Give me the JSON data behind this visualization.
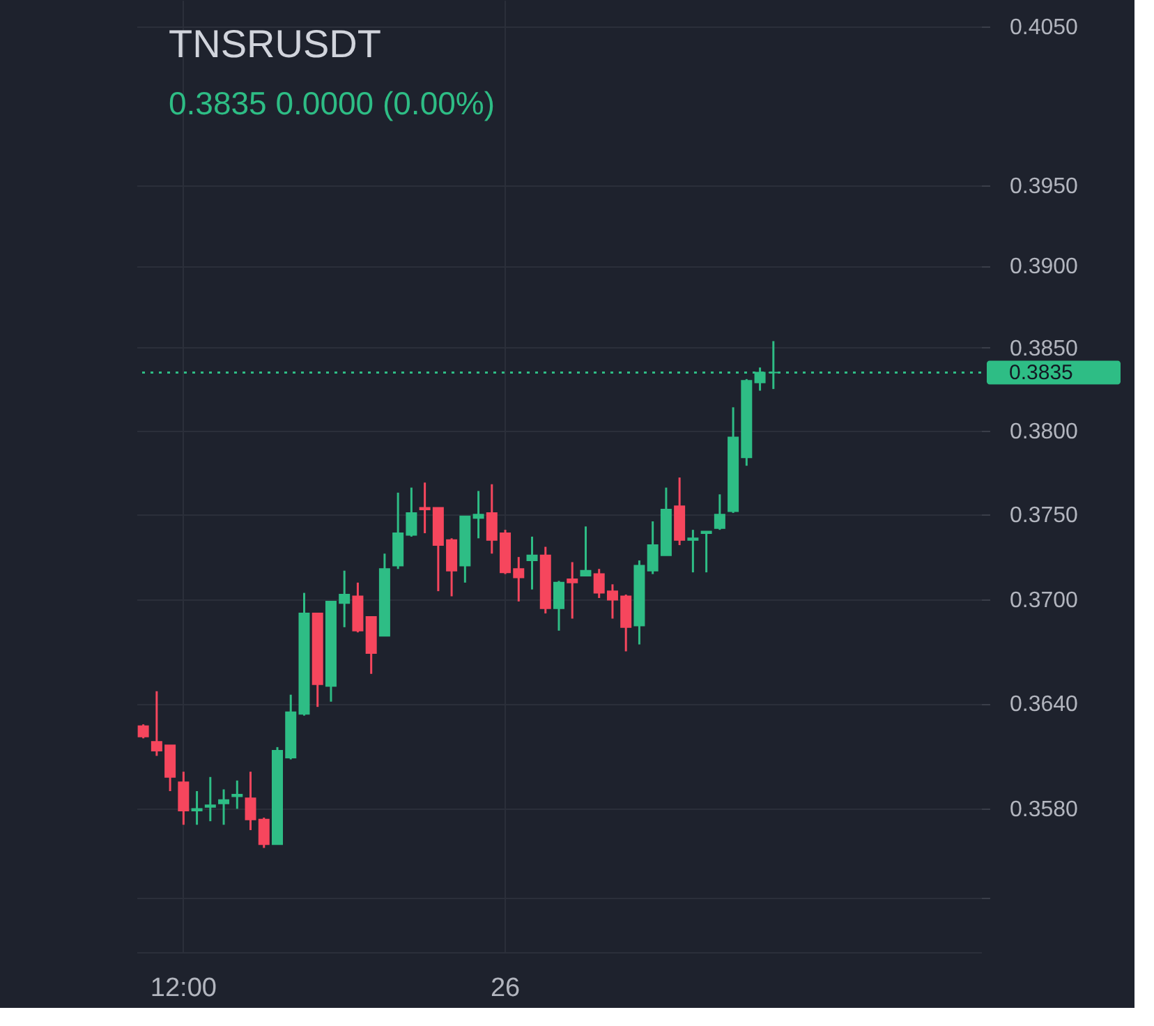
{
  "chart_data": {
    "type": "candlestick",
    "title": "TNSRUSDT",
    "subtitle": "0.3835 0.0000 (0.00%)",
    "categories": [
      null,
      null,
      null,
      "12:00",
      null,
      null,
      null,
      null,
      null,
      null,
      null,
      null,
      null,
      null,
      null,
      null,
      null,
      null,
      null,
      null,
      null,
      null,
      null,
      null,
      null,
      null,
      null,
      "26",
      null,
      null,
      null,
      null,
      null,
      null,
      null,
      null,
      null,
      null,
      null,
      null,
      null,
      null,
      null,
      null,
      null,
      null,
      null,
      null,
      null,
      null,
      null,
      null,
      null,
      null,
      null,
      null,
      null,
      null,
      null,
      null,
      null,
      null,
      null
    ],
    "ohlc": [
      [
        0.3627,
        0.3628,
        0.362,
        0.3621
      ],
      [
        0.3618,
        0.3647,
        0.361,
        0.3613
      ],
      [
        0.3616,
        0.3616,
        0.359,
        0.3598
      ],
      [
        0.3595,
        0.3601,
        0.3571,
        0.3579
      ],
      [
        0.3579,
        0.359,
        0.3571,
        0.358
      ],
      [
        0.3581,
        0.3598,
        0.3573,
        0.3582
      ],
      [
        0.3583,
        0.3591,
        0.3571,
        0.3585
      ],
      [
        0.3587,
        0.3596,
        0.358,
        0.3588
      ],
      [
        0.3586,
        0.3601,
        0.3568,
        0.3574
      ],
      [
        0.3574,
        0.3575,
        0.3558,
        0.356
      ],
      [
        0.356,
        0.3615,
        0.356,
        0.3613
      ],
      [
        0.3609,
        0.3645,
        0.3608,
        0.3635
      ],
      [
        0.3634,
        0.3704,
        0.3633,
        0.3692
      ],
      [
        0.3692,
        0.3692,
        0.3638,
        0.3651
      ],
      [
        0.365,
        0.3699,
        0.3641,
        0.3699
      ],
      [
        0.3698,
        0.3717,
        0.3684,
        0.3703
      ],
      [
        0.3702,
        0.371,
        0.3681,
        0.3682
      ],
      [
        0.369,
        0.369,
        0.3657,
        0.3669
      ],
      [
        0.3679,
        0.3727,
        0.3679,
        0.3718
      ],
      [
        0.372,
        0.3763,
        0.3718,
        0.3739
      ],
      [
        0.3738,
        0.3766,
        0.3737,
        0.3751
      ],
      [
        0.3754,
        0.3769,
        0.3739,
        0.3753
      ],
      [
        0.3754,
        0.3754,
        0.3705,
        0.3732
      ],
      [
        0.3735,
        0.3736,
        0.3702,
        0.3717
      ],
      [
        0.372,
        0.3749,
        0.371,
        0.3749
      ],
      [
        0.3748,
        0.3764,
        0.3736,
        0.375
      ],
      [
        0.3751,
        0.3768,
        0.3727,
        0.3735
      ],
      [
        0.3739,
        0.3741,
        0.3715,
        0.3716
      ],
      [
        0.3718,
        0.3725,
        0.3699,
        0.3713
      ],
      [
        0.3723,
        0.3737,
        0.3706,
        0.3726
      ],
      [
        0.3726,
        0.3731,
        0.3692,
        0.3695
      ],
      [
        0.3695,
        0.3711,
        0.3682,
        0.371
      ],
      [
        0.3712,
        0.3722,
        0.3689,
        0.371
      ],
      [
        0.3714,
        0.3743,
        0.3714,
        0.3717
      ],
      [
        0.3715,
        0.3718,
        0.3701,
        0.3704
      ],
      [
        0.3705,
        0.3709,
        0.3689,
        0.37
      ],
      [
        0.3702,
        0.3703,
        0.367,
        0.3684
      ],
      [
        0.3685,
        0.3723,
        0.3674,
        0.372
      ],
      [
        0.3717,
        0.3746,
        0.3715,
        0.3732
      ],
      [
        0.3726,
        0.3766,
        0.3726,
        0.3753
      ],
      [
        0.3755,
        0.3772,
        0.3732,
        0.3735
      ],
      [
        0.3735,
        0.3741,
        0.3716,
        0.3736
      ],
      [
        0.3739,
        0.374,
        0.3716,
        0.374
      ],
      [
        0.3742,
        0.3762,
        0.3741,
        0.375
      ],
      [
        0.3752,
        0.3814,
        0.3751,
        0.3796
      ],
      [
        0.3784,
        0.3831,
        0.3779,
        0.383
      ],
      [
        0.3829,
        0.3838,
        0.3824,
        0.3835
      ],
      [
        0.3835,
        0.3854,
        0.3825,
        0.3835
      ],
      null,
      null,
      null,
      null,
      null,
      null,
      null,
      null,
      null,
      null,
      null,
      null,
      null,
      null,
      null
    ],
    "colors": [
      "#f6465d",
      "#f6465d",
      "#f6465d",
      "#f6465d",
      "#2ebd85",
      "#2ebd85",
      "#2ebd85",
      "#2ebd85",
      "#f6465d",
      "#f6465d",
      "#2ebd85",
      "#2ebd85",
      "#2ebd85",
      "#f6465d",
      "#2ebd85",
      "#2ebd85",
      "#f6465d",
      "#f6465d",
      "#2ebd85",
      "#2ebd85",
      "#2ebd85",
      "#f6465d",
      "#f6465d",
      "#f6465d",
      "#2ebd85",
      "#2ebd85",
      "#f6465d",
      "#f6465d",
      "#f6465d",
      "#2ebd85",
      "#f6465d",
      "#2ebd85",
      "#f6465d",
      "#2ebd85",
      "#f6465d",
      "#f6465d",
      "#f6465d",
      "#2ebd85",
      "#2ebd85",
      "#2ebd85",
      "#f6465d",
      "#2ebd85",
      "#2ebd85",
      "#2ebd85",
      "#2ebd85",
      "#2ebd85",
      "#2ebd85",
      "#2ebd85",
      null,
      null,
      null,
      null,
      null,
      null,
      null,
      null,
      null,
      null,
      null,
      null,
      null,
      null,
      null
    ],
    "ylim": [
      0.35,
      0.4067
    ],
    "yticks": [
      {
        "value": 0.405,
        "label": "0.4050"
      },
      {
        "value": 0.395,
        "label": "0.3950"
      },
      {
        "value": 0.39,
        "label": "0.3900"
      },
      {
        "value": 0.385,
        "label": "0.3850"
      },
      {
        "value": 0.38,
        "label": "0.3800"
      },
      {
        "value": 0.375,
        "label": "0.3750"
      },
      {
        "value": 0.37,
        "label": "0.3700"
      },
      {
        "value": 0.364,
        "label": "0.3640"
      },
      {
        "value": 0.358,
        "label": "0.3580"
      },
      {
        "value": 0.353,
        "label": null
      }
    ],
    "log": "y",
    "grid": true,
    "ref_lines": [
      {
        "axis": "y",
        "value": 0.3835,
        "label": "0.3835",
        "color": "#2ebd85",
        "line_style": "dotted"
      }
    ]
  }
}
